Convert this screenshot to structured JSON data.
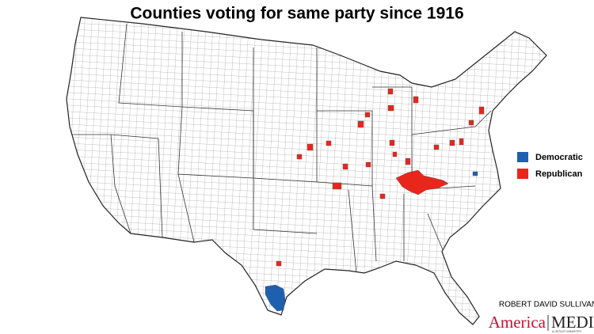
{
  "title": "Counties voting for same party since 1916",
  "legend": [
    {
      "label": "Democratic",
      "color": "#1f5fb0"
    },
    {
      "label": "Republican",
      "color": "#e8261c"
    }
  ],
  "credit": {
    "author": "ROBERT DAVID SULLIVAN",
    "brand_left": "America",
    "brand_right": "MEDIA",
    "tagline": "A JESUIT MINISTRY"
  }
}
